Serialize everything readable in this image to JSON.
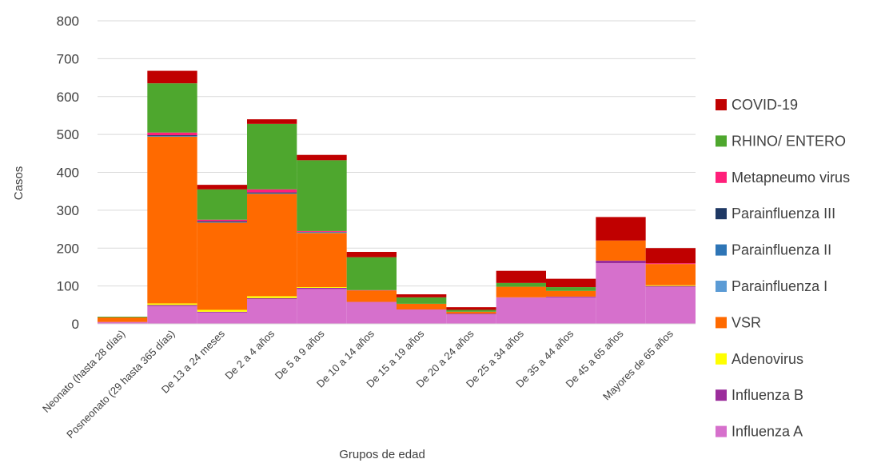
{
  "chart_data": {
    "type": "bar",
    "stacked": true,
    "xlabel": "Grupos de edad",
    "ylabel": "Casos",
    "ylim": [
      0,
      800
    ],
    "yticks": [
      0,
      100,
      200,
      300,
      400,
      500,
      600,
      700,
      800
    ],
    "grid": true,
    "legend_position": "right",
    "categories": [
      "Neonato (hasta 28 días)",
      "Posneonato (29 hasta 365 días)",
      "De 13 a 24 meses",
      "De 2 a 4 años",
      "De 5 a 9 años",
      "De 10 a 14 años",
      "De 15 a 19 años",
      "De 20 a 24 años",
      "De 25 a 34 años",
      "De 35 a 44 años",
      "De 45 a 65 años",
      "Mayores de 65 años"
    ],
    "series": [
      {
        "name": "Influenza A",
        "color": "#D670CC",
        "values": [
          5,
          47,
          30,
          65,
          92,
          58,
          38,
          25,
          70,
          70,
          160,
          98
        ]
      },
      {
        "name": "Influenza B",
        "color": "#9B2D9B",
        "values": [
          0,
          3,
          2,
          3,
          3,
          0,
          0,
          2,
          0,
          2,
          7,
          2
        ]
      },
      {
        "name": "Adenovirus",
        "color": "#FFFF00",
        "values": [
          0,
          4,
          5,
          5,
          2,
          0,
          0,
          0,
          0,
          0,
          0,
          2
        ]
      },
      {
        "name": "VSR",
        "color": "#FF6A00",
        "values": [
          12,
          440,
          230,
          270,
          143,
          30,
          15,
          5,
          28,
          15,
          53,
          56
        ]
      },
      {
        "name": "Parainfluenza  I",
        "color": "#5B9BD5",
        "values": [
          0,
          1,
          1,
          1,
          1,
          0,
          0,
          0,
          0,
          0,
          0,
          0
        ]
      },
      {
        "name": "Parainfluenza II",
        "color": "#2E75B6",
        "values": [
          0,
          1,
          1,
          1,
          1,
          0,
          0,
          0,
          0,
          0,
          0,
          0
        ]
      },
      {
        "name": "Parainfluenza III",
        "color": "#1F3864",
        "values": [
          0,
          2,
          2,
          2,
          1,
          0,
          0,
          0,
          0,
          0,
          0,
          0
        ]
      },
      {
        "name": "Metapneumo virus",
        "color": "#FF1F7A",
        "values": [
          0,
          7,
          4,
          8,
          2,
          1,
          0,
          0,
          0,
          0,
          0,
          2
        ]
      },
      {
        "name": "RHINO/ ENTERO",
        "color": "#4EA72E",
        "values": [
          2,
          130,
          80,
          173,
          187,
          87,
          17,
          5,
          10,
          10,
          0,
          0
        ]
      },
      {
        "name": "COVID-19",
        "color": "#C00000",
        "values": [
          0,
          33,
          12,
          12,
          14,
          14,
          8,
          7,
          32,
          22,
          62,
          40
        ]
      }
    ]
  }
}
